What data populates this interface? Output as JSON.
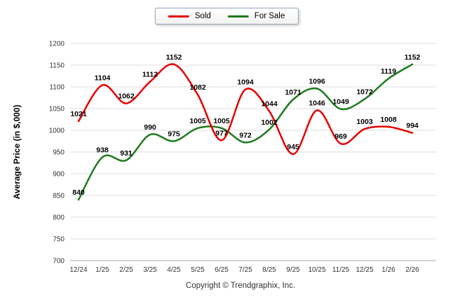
{
  "chart_data": {
    "type": "line",
    "x": [
      "12/24",
      "1/25",
      "2/25",
      "3/25",
      "4/25",
      "5/25",
      "6/25",
      "7/25",
      "8/25",
      "9/25",
      "10/25",
      "11/25",
      "12/25",
      "1/26",
      "2/26"
    ],
    "series": [
      {
        "name": "Sold",
        "color": "#e60000",
        "values": [
          1021,
          1104,
          1062,
          1112,
          1152,
          1082,
          977,
          1094,
          1044,
          945,
          1046,
          969,
          1003,
          1008,
          994
        ]
      },
      {
        "name": "For Sale",
        "color": "#1f7a1f",
        "values": [
          840,
          938,
          931,
          990,
          975,
          1005,
          1005,
          972,
          1002,
          1071,
          1096,
          1049,
          1072,
          1119,
          1152
        ]
      }
    ],
    "title": "",
    "xlabel": "",
    "ylabel": "Average Price (in $,000)",
    "ylim": [
      700,
      1200
    ],
    "ytick_step": 50,
    "grid": true,
    "legend_position": "top",
    "label_color": "#000000",
    "grid_color": "#dddddd",
    "axis_color": "#aaaaaa"
  },
  "footer": {
    "copyright": "Copyright © Trendgraphix, Inc."
  }
}
